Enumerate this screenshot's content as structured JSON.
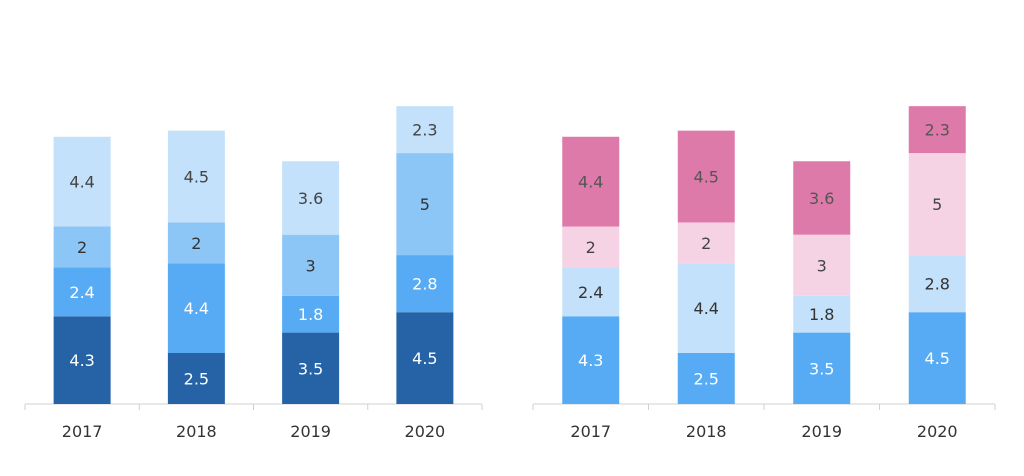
{
  "chart_data": [
    {
      "type": "bar",
      "stacked": true,
      "categories": [
        "2017",
        "2018",
        "2019",
        "2020"
      ],
      "series": [
        {
          "values": [
            4.3,
            2.5,
            3.5,
            4.5
          ],
          "color": "#2563A6",
          "label_color": "#ffffff"
        },
        {
          "values": [
            2.4,
            4.4,
            1.8,
            2.8
          ],
          "color": "#56ABF4",
          "label_color": "#ffffff"
        },
        {
          "values": [
            2,
            2,
            3,
            5
          ],
          "color": "#8CC6F7",
          "label_color": "#333333"
        },
        {
          "values": [
            4.4,
            4.5,
            3.6,
            2.3
          ],
          "color": "#C3E1FA",
          "label_color": "#444444"
        }
      ],
      "ylim": [
        0,
        15
      ],
      "grid": false,
      "legend": "none"
    },
    {
      "type": "bar",
      "stacked": true,
      "categories": [
        "2017",
        "2018",
        "2019",
        "2020"
      ],
      "series": [
        {
          "values": [
            4.3,
            2.5,
            3.5,
            4.5
          ],
          "color": "#56ABF4",
          "label_color": "#ffffff"
        },
        {
          "values": [
            2.4,
            4.4,
            1.8,
            2.8
          ],
          "color": "#C3E1FA",
          "label_color": "#333333"
        },
        {
          "values": [
            2,
            2,
            3,
            5
          ],
          "color": "#F6D3E4",
          "label_color": "#444444"
        },
        {
          "values": [
            4.4,
            4.5,
            3.6,
            2.3
          ],
          "color": "#DE7AAA",
          "label_color": "#555555"
        }
      ],
      "ylim": [
        0,
        15
      ],
      "grid": false,
      "legend": "none"
    }
  ]
}
